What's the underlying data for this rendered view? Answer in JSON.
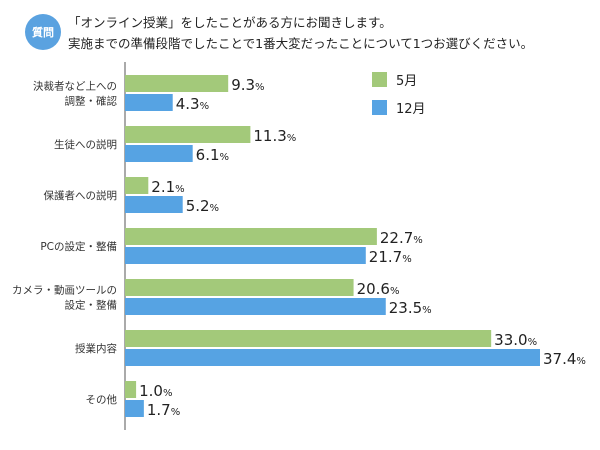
{
  "header": {
    "badge": "質問",
    "line1": "「オンライン授業」をしたことがある方にお聞きします。",
    "line2": "実施までの準備段階でしたことで1番大変だったことについて1つお選びください。"
  },
  "chart_data": {
    "type": "bar",
    "orientation": "horizontal",
    "categories": [
      [
        "決裁者など上への",
        "調整・確認"
      ],
      [
        "生徒への説明"
      ],
      [
        "保護者への説明"
      ],
      [
        "PCの設定・整備"
      ],
      [
        "カメラ・動画ツールの",
        "設定・整備"
      ],
      [
        "授業内容"
      ],
      [
        "その他"
      ]
    ],
    "series": [
      {
        "name": "5月",
        "color": "#a3c97a",
        "values": [
          9.3,
          11.3,
          2.1,
          22.7,
          20.6,
          33.0,
          1.0
        ]
      },
      {
        "name": "12月",
        "color": "#56a3e3",
        "values": [
          4.3,
          6.1,
          5.2,
          21.7,
          23.5,
          37.4,
          1.7
        ]
      }
    ],
    "unit": "%",
    "xlim": [
      0,
      40
    ],
    "legend": "top-right",
    "grid": false
  }
}
